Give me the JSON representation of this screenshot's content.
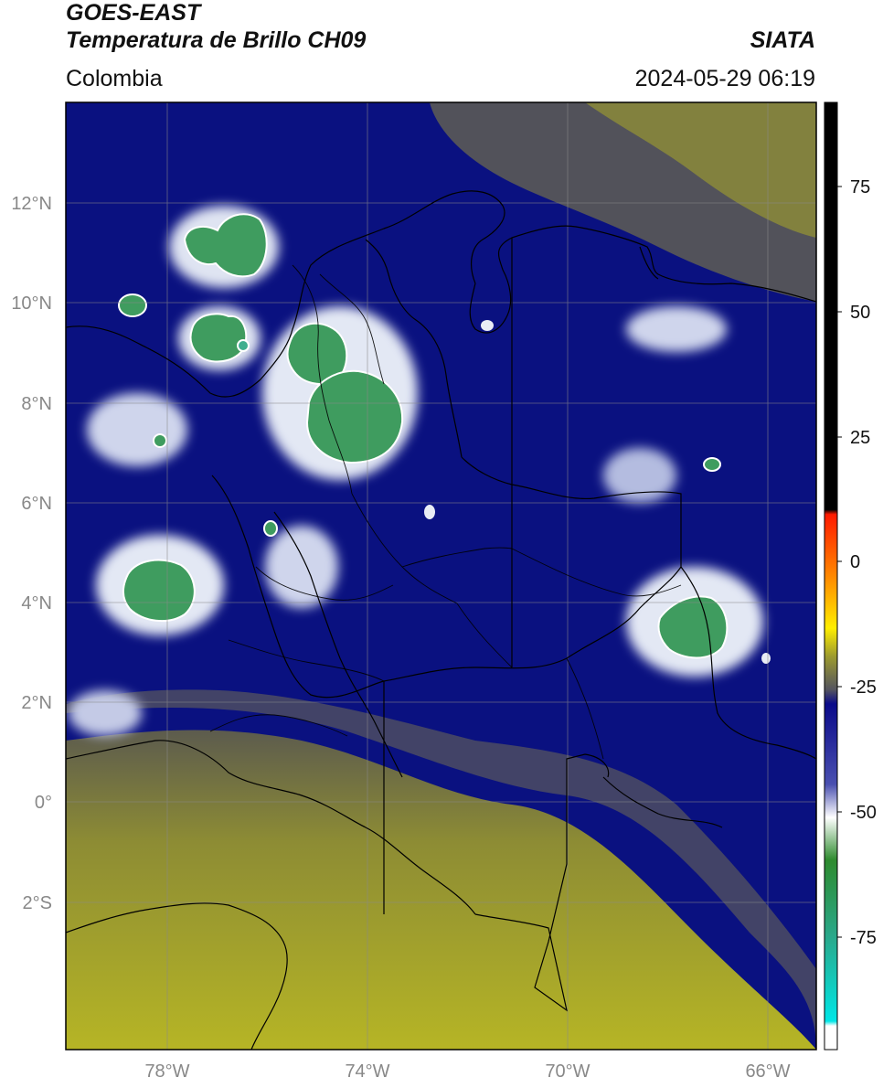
{
  "header": {
    "title_line1": "GOES-EAST",
    "title_line2": "Temperatura de Brillo CH09",
    "region": "Colombia",
    "agency": "SIATA",
    "timestamp": "2024-05-29 06:19"
  },
  "map": {
    "lat_labels": [
      "12°N",
      "10°N",
      "8°N",
      "6°N",
      "4°N",
      "2°N",
      "0°",
      "2°S"
    ],
    "lat_values": [
      12,
      10,
      8,
      6,
      4,
      2,
      0,
      -2
    ],
    "lon_labels": [
      "78°W",
      "74°W",
      "70°W",
      "66°W"
    ],
    "lon_values": [
      -78,
      -74,
      -70,
      -66
    ],
    "extent": {
      "lon_min": -80,
      "lon_max": -65,
      "lat_min": -5,
      "lat_max": 14
    },
    "colors": {
      "cold_background": "#0a1180",
      "warm_land": "#b4b52a",
      "transition": "#4e4e60",
      "cloud_white": "#e8ecf4",
      "cloud_green": "#3e9a5c",
      "border": "#000000"
    }
  },
  "colorbar": {
    "tick_labels": [
      "75",
      "50",
      "25",
      "0",
      "-25",
      "-50",
      "-75"
    ],
    "tick_values": [
      75,
      50,
      25,
      0,
      -25,
      -50,
      -75
    ],
    "range": [
      -95,
      90
    ],
    "colors": {
      "black": "#000000",
      "red": "#ff2200",
      "orange": "#ff9900",
      "yellow": "#e8e800",
      "olive": "#9a9a2a",
      "gray": "#555560",
      "navy": "#0a0a8a",
      "white": "#ffffff",
      "green": "#2e8b2e",
      "teal": "#2aa88a",
      "cyan": "#00e0e0"
    }
  }
}
